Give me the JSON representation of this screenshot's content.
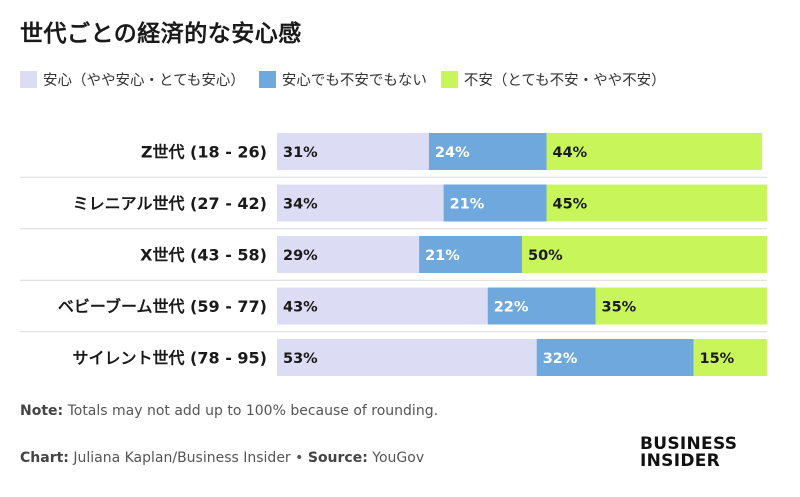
{
  "title": "世代ごとの経済的な安心感",
  "legend": [
    {
      "label": "安心（やや安心・とても安心）",
      "color": "#dcdcf5"
    },
    {
      "label": "安心でも不安でもない",
      "color": "#6ea8dc"
    },
    {
      "label": "不安（とても不安・やや不安）",
      "color": "#c8f55a"
    }
  ],
  "note": {
    "label": "Note:",
    "text": " Totals may not add up to 100% because of rounding."
  },
  "source": {
    "chart_label": "Chart:",
    "chart_text": " Juliana Kaplan/Business Insider • ",
    "source_label": "Source:",
    "source_text": " YouGov"
  },
  "logo": {
    "line1": "BUSINESS",
    "line2": "INSIDER"
  },
  "chart_data": {
    "type": "bar",
    "orientation": "horizontal",
    "stacked": true,
    "categories": [
      "Z世代 (18 - 26)",
      "ミレニアル世代 (27 - 42)",
      "X世代 (43 - 58)",
      "ベビーブーム世代 (59 - 77)",
      "サイレント世代 (78 - 95)"
    ],
    "series": [
      {
        "name": "安心（やや安心・とても安心）",
        "values": [
          31,
          34,
          29,
          43,
          53
        ],
        "color": "#dcdcf5"
      },
      {
        "name": "安心でも不安でもない",
        "values": [
          24,
          21,
          21,
          22,
          32
        ],
        "color": "#6ea8dc"
      },
      {
        "name": "不安（とても不安・やや不安）",
        "values": [
          44,
          45,
          50,
          35,
          15
        ],
        "color": "#c8f55a"
      }
    ],
    "value_suffix": "%",
    "xlim": [
      0,
      100
    ],
    "grid": false,
    "legend_position": "top-left"
  }
}
